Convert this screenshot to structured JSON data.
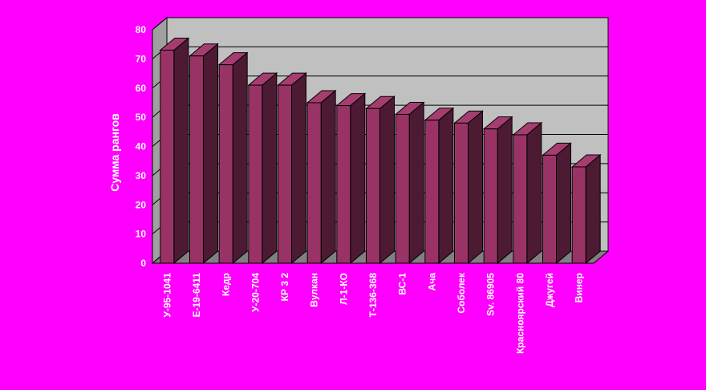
{
  "chart_data": {
    "type": "bar3d",
    "y_label": "Сумма рангов",
    "categories": [
      "У-95-1041",
      "Е-19-6411",
      "Кедр",
      "У-20-704",
      "КР 3 2",
      "Вулкан",
      "Л-1-КО",
      "Т-136-368",
      "ВС-1",
      "Ача",
      "Соболек",
      "Sv. 86905",
      "Красноярский 80",
      "Джугей",
      "Винер"
    ],
    "values": [
      73,
      71,
      68,
      61,
      61,
      55,
      54,
      53,
      51,
      49,
      48,
      46,
      44,
      37,
      33
    ],
    "color": "#993366",
    "ylim": [
      0,
      80
    ],
    "yticks": [
      0,
      10,
      20,
      30,
      40,
      50,
      60,
      70,
      80
    ],
    "grid": true
  }
}
